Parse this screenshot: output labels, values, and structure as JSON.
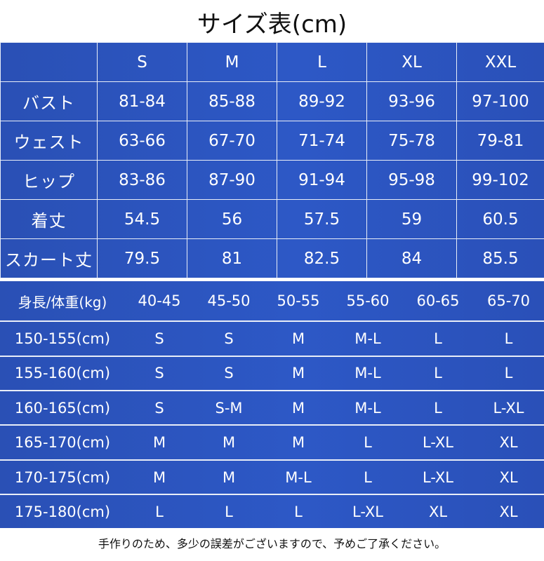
{
  "title": "サイズ表(cm)",
  "size_table": {
    "columns": [
      "",
      "S",
      "M",
      "L",
      "XL",
      "XXL"
    ],
    "rows": [
      {
        "label": "バスト",
        "values": [
          "81-84",
          "85-88",
          "89-92",
          "93-96",
          "97-100"
        ]
      },
      {
        "label": "ウェスト",
        "values": [
          "63-66",
          "67-70",
          "71-74",
          "75-78",
          "79-81"
        ]
      },
      {
        "label": "ヒップ",
        "values": [
          "83-86",
          "87-90",
          "91-94",
          "95-98",
          "99-102"
        ]
      },
      {
        "label": "着丈",
        "values": [
          "54.5",
          "56",
          "57.5",
          "59",
          "60.5"
        ]
      },
      {
        "label": "スカート丈",
        "values": [
          "79.5",
          "81",
          "82.5",
          "84",
          "85.5"
        ]
      }
    ]
  },
  "guide_table": {
    "corner": "身長/体重(kg)",
    "weights": [
      "40-45",
      "45-50",
      "50-55",
      "55-60",
      "60-65",
      "65-70"
    ],
    "rows": [
      {
        "label": "150-155(cm)",
        "values": [
          "S",
          "S",
          "M",
          "M-L",
          "L",
          "L"
        ]
      },
      {
        "label": "155-160(cm)",
        "values": [
          "S",
          "S",
          "M",
          "M-L",
          "L",
          "L"
        ]
      },
      {
        "label": "160-165(cm)",
        "values": [
          "S",
          "S-M",
          "M",
          "M-L",
          "L",
          "L-XL"
        ]
      },
      {
        "label": "165-170(cm)",
        "values": [
          "M",
          "M",
          "M",
          "L",
          "L-XL",
          "XL"
        ]
      },
      {
        "label": "170-175(cm)",
        "values": [
          "M",
          "M",
          "M-L",
          "L",
          "L-XL",
          "XL"
        ]
      },
      {
        "label": "175-180(cm)",
        "values": [
          "L",
          "L",
          "L",
          "L-XL",
          "XL",
          "XL"
        ]
      }
    ]
  },
  "note": "手作りのため、多少の誤差がございますので、予めご了承ください。"
}
